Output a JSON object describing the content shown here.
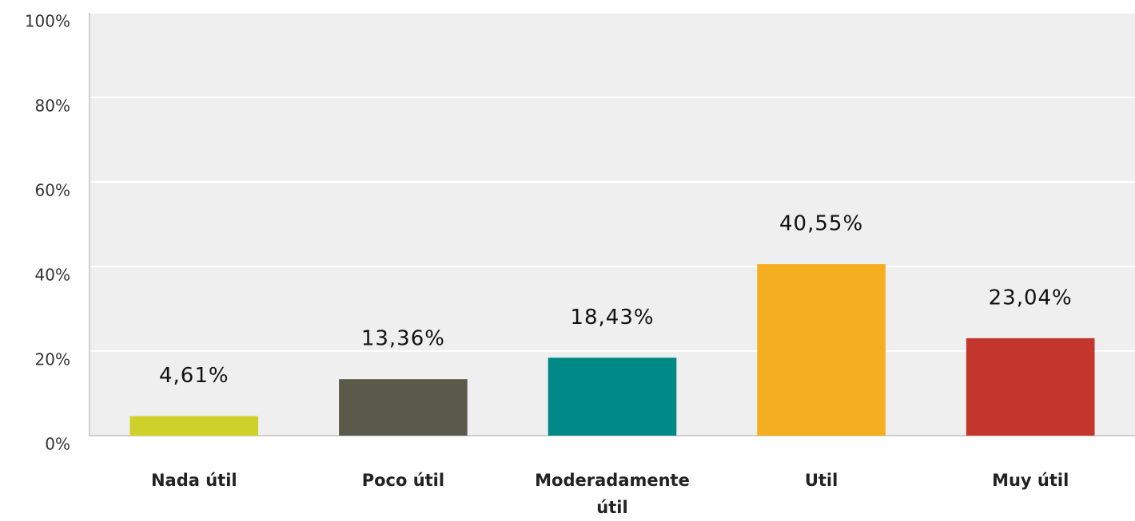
{
  "chart_data": {
    "type": "bar",
    "categories": [
      "Nada útil",
      "Poco útil",
      "Moderadamente útil",
      "Util",
      "Muy útil"
    ],
    "values": [
      4.61,
      13.36,
      18.43,
      40.55,
      23.04
    ],
    "value_labels": [
      "4,61%",
      "13,36%",
      "18,43%",
      "40,55%",
      "23,04%"
    ],
    "colors": [
      "#cfd12b",
      "#5b5a4a",
      "#008a87",
      "#f5ae20",
      "#c4352b"
    ],
    "ylim": [
      0,
      100
    ],
    "yticks": [
      {
        "value": 0,
        "label": "0%"
      },
      {
        "value": 20,
        "label": "20%"
      },
      {
        "value": 40,
        "label": "40%"
      },
      {
        "value": 60,
        "label": "60%"
      },
      {
        "value": 80,
        "label": "80%"
      },
      {
        "value": 100,
        "label": "100%"
      }
    ],
    "grid": true
  }
}
